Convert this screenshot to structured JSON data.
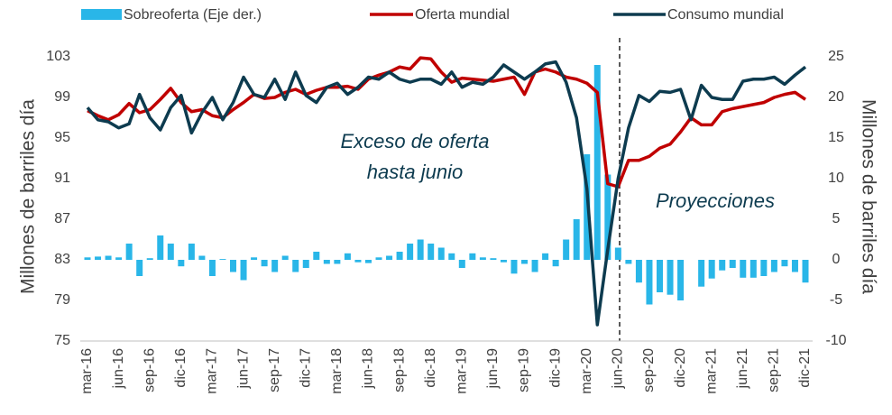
{
  "chart_data": {
    "type": "bar-line",
    "categories": [
      "mar-16",
      null,
      null,
      "jun-16",
      null,
      null,
      "sep-16",
      null,
      null,
      "dic-16",
      null,
      null,
      "mar-17",
      null,
      null,
      "jun-17",
      null,
      null,
      "sep-17",
      null,
      null,
      "dic-17",
      null,
      null,
      "mar-18",
      null,
      null,
      "jun-18",
      null,
      null,
      "sep-18",
      null,
      null,
      "dic-18",
      null,
      null,
      "mar-19",
      null,
      null,
      "jun-19",
      null,
      null,
      "sep-19",
      null,
      null,
      "dic-19",
      null,
      null,
      "mar-20",
      null,
      null,
      "jun-20",
      null,
      null,
      "sep-20",
      null,
      null,
      "dic-20",
      null,
      null,
      "mar-21",
      null,
      null,
      "jun-21",
      null,
      null,
      "sep-21",
      null,
      null,
      "dic-21"
    ],
    "series": [
      {
        "name": "Sobreoferta (Eje der.)",
        "kind": "bar",
        "axis": "y2",
        "color": "#29b6e8",
        "values": [
          0.3,
          0.4,
          0.5,
          0.3,
          2.0,
          -2.0,
          0.2,
          3.0,
          2.0,
          -0.8,
          2.0,
          0.5,
          -2.0,
          0.1,
          -1.5,
          -2.5,
          0.3,
          -0.8,
          -1.5,
          0.5,
          -1.5,
          -1.0,
          1.0,
          -0.5,
          -0.5,
          0.8,
          -0.3,
          -0.4,
          0.3,
          0.5,
          1.0,
          2.0,
          2.5,
          2.0,
          1.5,
          0.8,
          -1.0,
          0.8,
          0.3,
          0.2,
          -0.3,
          -1.7,
          -0.5,
          -1.5,
          0.8,
          -0.8,
          2.5,
          5.0,
          13.0,
          24.0,
          10.5,
          1.5,
          -0.5,
          -2.8,
          -5.5,
          -4.0,
          -4.3,
          -5.0,
          0,
          -3.3,
          -2.3,
          -1.3,
          -1.0,
          -2.2,
          -2.2,
          -2.0,
          -1.5,
          -0.8,
          -1.5,
          -2.8
        ]
      },
      {
        "name": "Oferta mundial",
        "kind": "line",
        "color": "#c00000",
        "values": [
          97.7,
          97.2,
          96.8,
          97.3,
          98.4,
          97.5,
          97.8,
          98.8,
          99.9,
          98.5,
          97.6,
          97.8,
          97.2,
          97.0,
          97.8,
          98.5,
          99.3,
          98.9,
          99.0,
          99.5,
          99.8,
          99.3,
          99.7,
          100.0,
          100.0,
          100.1,
          99.8,
          100.8,
          101.2,
          101.5,
          102.0,
          101.8,
          102.9,
          102.8,
          101.5,
          100.5,
          100.9,
          100.8,
          100.7,
          100.6,
          100.8,
          101.0,
          99.3,
          101.5,
          101.8,
          101.5,
          101.0,
          100.8,
          100.4,
          99.5,
          90.5,
          90.2,
          92.8,
          92.8,
          93.2,
          94.0,
          94.4,
          95.6,
          97.0,
          96.3,
          96.3,
          97.6,
          97.9,
          98.1,
          98.3,
          98.5,
          99.0,
          99.3,
          99.5,
          98.8
        ]
      },
      {
        "name": "Consumo mundial",
        "kind": "line",
        "color": "#0d3b4f",
        "values": [
          98.0,
          96.8,
          96.6,
          96.0,
          96.4,
          99.3,
          97.0,
          95.8,
          98.0,
          99.2,
          95.5,
          97.5,
          99.0,
          96.8,
          98.5,
          101.0,
          99.3,
          99.0,
          100.8,
          98.8,
          101.5,
          99.2,
          98.5,
          100.0,
          100.4,
          99.3,
          100.0,
          101.0,
          100.8,
          101.5,
          100.8,
          100.5,
          100.8,
          100.8,
          100.3,
          101.5,
          100.0,
          100.5,
          100.3,
          101.0,
          102.2,
          101.5,
          100.8,
          101.5,
          102.3,
          102.5,
          100.5,
          97.0,
          90.0,
          76.6,
          84.0,
          91.0,
          96.0,
          99.2,
          98.6,
          99.6,
          99.5,
          99.8,
          96.8,
          100.2,
          99.0,
          98.8,
          98.8,
          100.6,
          100.8,
          100.8,
          101.0,
          100.3,
          101.2,
          102.0
        ]
      }
    ],
    "ylabel": "Millones de barriles día",
    "y2label": "Millones de barriles día",
    "ylim": [
      75,
      103
    ],
    "yticks": [
      75,
      79,
      83,
      87,
      91,
      95,
      99,
      103
    ],
    "y2lim": [
      -10,
      25
    ],
    "y2ticks": [
      -10,
      -5,
      0,
      5,
      10,
      15,
      20,
      25
    ],
    "annotations": [
      "Exceso de oferta",
      "hasta junio",
      "Proyecciones"
    ],
    "legend": "top"
  }
}
